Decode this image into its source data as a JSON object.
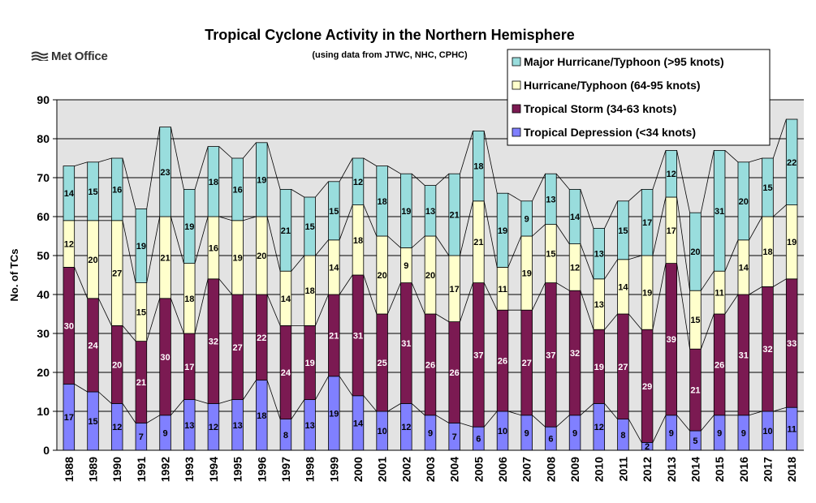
{
  "brand": {
    "name": "Met Office"
  },
  "chart_data": {
    "type": "bar",
    "stacked": true,
    "title": "Tropical Cyclone Activity in the Northern Hemisphere",
    "subtitle": "(using data from JTWC, NHC, CPHC)",
    "ylabel": "No. of TCs",
    "xlabel": "",
    "ylim": [
      0,
      90
    ],
    "yticks": [
      0,
      10,
      20,
      30,
      40,
      50,
      60,
      70,
      80,
      90
    ],
    "grid": true,
    "legend_position": "top-right",
    "categories": [
      "1988",
      "1989",
      "1990",
      "1991",
      "1992",
      "1993",
      "1994",
      "1995",
      "1996",
      "1997",
      "1998",
      "1999",
      "2000",
      "2001",
      "2002",
      "2003",
      "2004",
      "2005",
      "2006",
      "2007",
      "2008",
      "2009",
      "2010",
      "2011",
      "2012",
      "2013",
      "2014",
      "2015",
      "2016",
      "2017",
      "2018"
    ],
    "series": [
      {
        "name": "Tropical Depression (<34 knots)",
        "color": "#8080ff",
        "values": [
          17,
          15,
          12,
          7,
          9,
          13,
          12,
          13,
          18,
          8,
          13,
          19,
          14,
          10,
          12,
          9,
          7,
          6,
          10,
          9,
          6,
          9,
          12,
          8,
          2,
          9,
          5,
          9,
          9,
          10,
          11
        ]
      },
      {
        "name": "Tropical Storm (34-63 knots)",
        "color": "#7b1a52",
        "values": [
          30,
          24,
          20,
          21,
          30,
          17,
          32,
          27,
          22,
          24,
          19,
          21,
          31,
          25,
          31,
          26,
          26,
          37,
          26,
          27,
          37,
          32,
          19,
          27,
          29,
          39,
          21,
          26,
          31,
          32,
          33
        ]
      },
      {
        "name": "Hurricane/Typhoon (64-95 knots)",
        "color": "#ffffcc",
        "values": [
          12,
          20,
          27,
          15,
          21,
          18,
          16,
          19,
          20,
          14,
          18,
          14,
          18,
          20,
          9,
          20,
          17,
          21,
          11,
          19,
          15,
          12,
          13,
          14,
          19,
          17,
          15,
          11,
          14,
          18,
          19
        ]
      },
      {
        "name": "Major Hurricane/Typhoon (>95 knots)",
        "color": "#99dddd",
        "values": [
          14,
          15,
          16,
          19,
          23,
          19,
          18,
          16,
          19,
          21,
          15,
          15,
          12,
          18,
          19,
          13,
          21,
          18,
          19,
          9,
          13,
          14,
          13,
          15,
          17,
          12,
          20,
          31,
          20,
          15,
          22
        ]
      }
    ],
    "legend_order": [
      3,
      2,
      1,
      0
    ],
    "plot_background": "#e3e3e3"
  }
}
